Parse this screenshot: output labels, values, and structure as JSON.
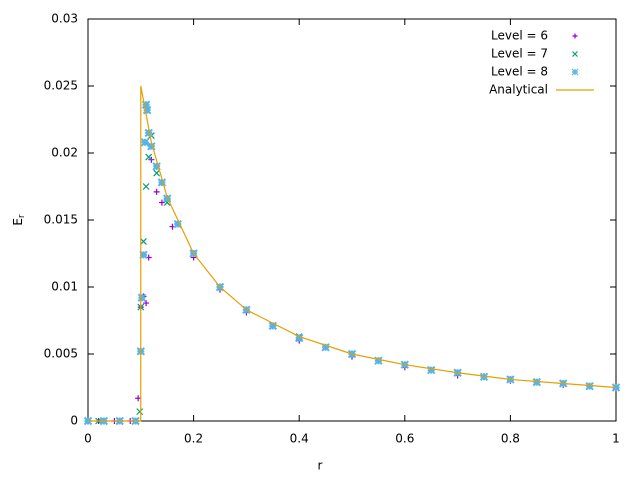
{
  "chart_data": {
    "type": "scatter",
    "x_label": "r",
    "y_label": "E",
    "y_label_subscript": "r",
    "xlim": [
      0,
      1
    ],
    "ylim": [
      0,
      0.03
    ],
    "xticks": [
      0,
      0.2,
      0.4,
      0.6,
      0.8,
      1
    ],
    "yticks": [
      0,
      0.005,
      0.01,
      0.015,
      0.02,
      0.025,
      0.03
    ],
    "grid": false,
    "legend": "top right",
    "series": [
      {
        "name": "Level = 6",
        "color": "#9400d3",
        "marker": "plus",
        "x": [
          0.02,
          0.05,
          0.08,
          0.095,
          0.1,
          0.105,
          0.11,
          0.115,
          0.12,
          0.13,
          0.14,
          0.16,
          0.2,
          0.25,
          0.3,
          0.4,
          0.5,
          0.6,
          0.7,
          0.8,
          0.9,
          1.0
        ],
        "values": [
          0,
          0,
          0,
          0.0017,
          0.0085,
          0.0093,
          0.0088,
          0.0122,
          0.0195,
          0.0171,
          0.0163,
          0.0145,
          0.0122,
          0.0098,
          0.0081,
          0.006,
          0.0048,
          0.004,
          0.0034,
          0.003,
          0.0027,
          0.0024
        ]
      },
      {
        "name": "Level = 7",
        "color": "#009e73",
        "marker": "cross",
        "x": [
          0.02,
          0.06,
          0.098,
          0.1,
          0.105,
          0.11,
          0.115,
          0.12,
          0.13,
          0.15,
          0.2,
          0.3,
          0.4,
          0.5,
          0.6,
          0.7,
          0.8,
          0.9,
          1.0
        ],
        "values": [
          0,
          0,
          0.0007,
          0.0085,
          0.0134,
          0.0175,
          0.0197,
          0.0213,
          0.0185,
          0.0163,
          0.0125,
          0.0083,
          0.0063,
          0.005,
          0.0042,
          0.0036,
          0.0031,
          0.0028,
          0.0025
        ]
      },
      {
        "name": "Level = 8",
        "color": "#56b4e9",
        "marker": "star",
        "x": [
          0,
          0.03,
          0.06,
          0.09,
          0.1,
          0.102,
          0.105,
          0.108,
          0.11,
          0.112,
          0.115,
          0.12,
          0.13,
          0.14,
          0.15,
          0.17,
          0.2,
          0.25,
          0.3,
          0.35,
          0.4,
          0.45,
          0.5,
          0.55,
          0.6,
          0.65,
          0.7,
          0.75,
          0.8,
          0.85,
          0.9,
          0.95,
          1.0
        ],
        "values": [
          0,
          0,
          0,
          0,
          0.0052,
          0.0092,
          0.0124,
          0.0208,
          0.0236,
          0.0232,
          0.0215,
          0.0205,
          0.019,
          0.0178,
          0.0166,
          0.0147,
          0.0125,
          0.01,
          0.0083,
          0.0071,
          0.0062,
          0.0055,
          0.005,
          0.0045,
          0.0042,
          0.0038,
          0.0036,
          0.0033,
          0.0031,
          0.0029,
          0.0028,
          0.0026,
          0.0025
        ]
      },
      {
        "name": "Analytical",
        "color": "#e69f00",
        "marker": "line",
        "x": [
          0,
          0.0999,
          0.1,
          0.12,
          0.15,
          0.2,
          0.25,
          0.3,
          0.4,
          0.5,
          0.6,
          0.7,
          0.8,
          0.9,
          1.0
        ],
        "values": [
          0,
          0,
          0.025,
          0.0208,
          0.0167,
          0.0125,
          0.01,
          0.0083,
          0.0063,
          0.005,
          0.0042,
          0.0036,
          0.0031,
          0.0028,
          0.0025
        ]
      }
    ]
  }
}
